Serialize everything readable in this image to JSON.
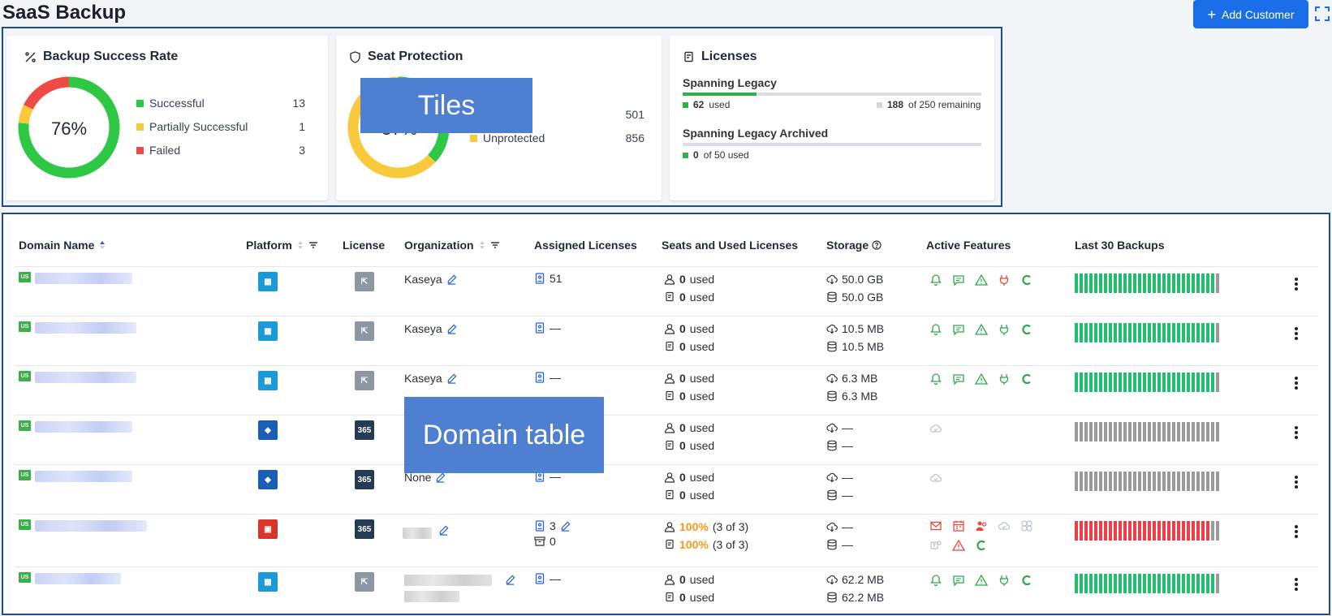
{
  "header": {
    "title": "SaaS Backup",
    "add_button": "Add Customer"
  },
  "annotations": {
    "tiles": "Tiles",
    "table": "Domain table"
  },
  "tiles": {
    "backup": {
      "title": "Backup Success Rate",
      "center": "76%",
      "legend": [
        {
          "label": "Successful",
          "count": "13",
          "color": "#2fc845"
        },
        {
          "label": "Partially Successful",
          "count": "1",
          "color": "#f8c93a"
        },
        {
          "label": "Failed",
          "count": "3",
          "color": "#ee4b45"
        }
      ],
      "slices": [
        13,
        1,
        3
      ]
    },
    "seat": {
      "title": "Seat Protection",
      "center": "37%",
      "rows": [
        {
          "label": "",
          "count": "501"
        },
        {
          "label": "Unprotected",
          "count": "856"
        }
      ],
      "protected_pct": 37
    },
    "licenses": {
      "title": "Licenses",
      "items": [
        {
          "name": "Spanning Legacy",
          "used": "62",
          "used_label": "used",
          "remaining": "188",
          "remaining_label": "of 250 remaining",
          "fill": 0.248
        },
        {
          "name": "Spanning Legacy Archived",
          "used": "0",
          "used_label": "of 50 used",
          "fill": 0
        }
      ],
      "pages": 7,
      "active_page": 0
    }
  },
  "table": {
    "headers": {
      "domain": "Domain Name",
      "platform": "Platform",
      "license": "License",
      "organization": "Organization",
      "assigned": "Assigned Licenses",
      "seats": "Seats and Used Licenses",
      "storage": "Storage",
      "features": "Active Features",
      "backups": "Last 30 Backups"
    },
    "rows": [
      {
        "region": "US",
        "platform": "google",
        "license": "legacy",
        "org": "Kaseya",
        "assigned": "51",
        "seat1": "0",
        "seat1_label": "used",
        "seat2": "0",
        "seat2_label": "used",
        "storage1": "50.0 GB",
        "storage2": "50.0 GB",
        "features": "green",
        "backups": "green"
      },
      {
        "region": "US",
        "platform": "google",
        "license": "legacy",
        "org": "Kaseya",
        "assigned": "—",
        "seat1": "0",
        "seat1_label": "used",
        "seat2": "0",
        "seat2_label": "used",
        "storage1": "10.5 MB",
        "storage2": "10.5 MB",
        "features": "green",
        "backups": "green"
      },
      {
        "region": "US",
        "platform": "google",
        "license": "legacy",
        "org": "Kaseya",
        "assigned": "—",
        "seat1": "0",
        "seat1_label": "used",
        "seat2": "0",
        "seat2_label": "used",
        "storage1": "6.3 MB",
        "storage2": "6.3 MB",
        "features": "green",
        "backups": "green"
      },
      {
        "region": "US",
        "platform": "azure",
        "license": "365",
        "org": "",
        "assigned": "",
        "seat1": "0",
        "seat1_label": "used",
        "seat2": "0",
        "seat2_label": "used",
        "storage1": "—",
        "storage2": "—",
        "features": "cloud",
        "backups": "gray"
      },
      {
        "region": "US",
        "platform": "azure",
        "license": "365",
        "org": "None",
        "assigned": "—",
        "seat1": "0",
        "seat1_label": "used",
        "seat2": "0",
        "seat2_label": "used",
        "storage1": "—",
        "storage2": "—",
        "features": "cloud",
        "backups": "gray"
      },
      {
        "region": "US",
        "platform": "office",
        "license": "365",
        "org": "",
        "assigned": "3",
        "archived": "0",
        "seat1": "100%",
        "seat1_label": "(3 of 3)",
        "seat2": "100%",
        "seat2_label": "(3 of 3)",
        "storage1": "—",
        "storage2": "—",
        "features": "red",
        "backups": "red"
      },
      {
        "region": "US",
        "platform": "google",
        "license": "legacy",
        "org": "",
        "assigned": "—",
        "seat1": "0",
        "seat1_label": "used",
        "seat2": "0",
        "seat2_label": "used",
        "storage1": "62.2 MB",
        "storage2": "62.2 MB",
        "features": "green",
        "backups": "green"
      }
    ],
    "license_365_label": "365",
    "colors": {
      "green": "#1fbf6e",
      "gray": "#9a9a9a",
      "red": "#ee3d45",
      "orange": "#f39a1e",
      "link": "#2463d9"
    }
  }
}
